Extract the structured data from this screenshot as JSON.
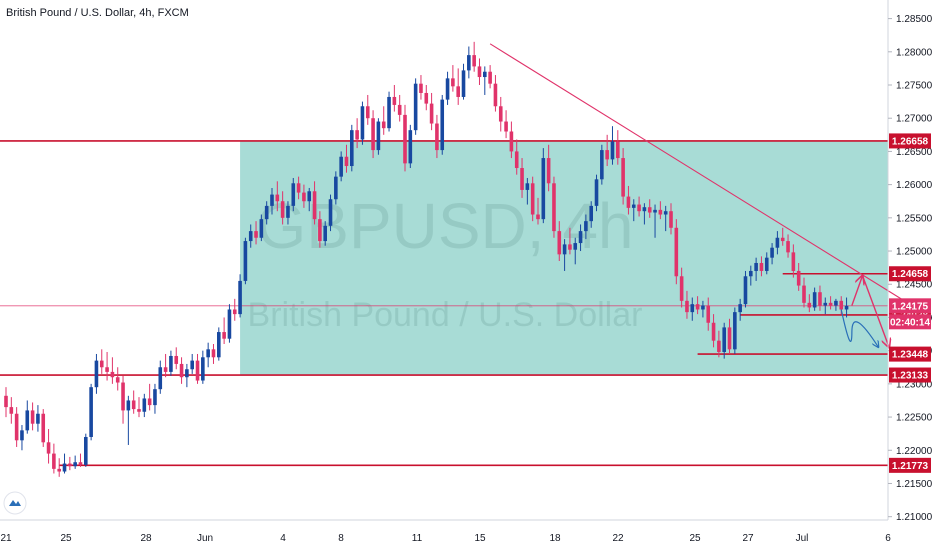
{
  "chart_data": {
    "type": "candlestick",
    "title": "British Pound / U.S. Dollar, 4h, FXCM",
    "watermark_symbol": "GBPUSD, 4h",
    "watermark_name": "British Pound / U.S. Dollar",
    "ylim": [
      1.2095,
      1.2878
    ],
    "y_ticks": [
      "1.28500",
      "1.28000",
      "1.27500",
      "1.27000",
      "1.26500",
      "1.26000",
      "1.25500",
      "1.25000",
      "1.24500",
      "1.24000",
      "1.23500",
      "1.23000",
      "1.22500",
      "1.22000",
      "1.21500",
      "1.21000"
    ],
    "x_ticks": [
      "21",
      "25",
      "28",
      "Jun",
      "4",
      "8",
      "11",
      "15",
      "18",
      "22",
      "25",
      "27",
      "Jul",
      "6"
    ],
    "colors": {
      "up": "#1848a0",
      "down": "#e0336a",
      "zone": "#a8dcd6",
      "level": "#c8102e",
      "trendline": "#e0336a",
      "badge": "#c8102e",
      "projection": "#e0336a",
      "projection_alt": "#2a6fb8"
    },
    "zone": {
      "from": 1.23133,
      "to": 1.26658,
      "start_bar": 44
    },
    "levels": [
      {
        "value": 1.26658,
        "label": "1.26658",
        "start_bar": -8
      },
      {
        "value": 1.24658,
        "label": "1.24658",
        "start_bar": 146
      },
      {
        "value": 1.24038,
        "label": "1.24038",
        "start_bar": 138
      },
      {
        "value": 1.23448,
        "label": "1.23448",
        "start_bar": 130
      },
      {
        "value": 1.23133,
        "label": "1.23133",
        "start_bar": -8
      },
      {
        "value": 1.21773,
        "label": "1.21773",
        "start_bar": 10
      }
    ],
    "price_line": {
      "value": 1.24175,
      "label": "1.24175",
      "countdown": "02:40:14"
    },
    "trendline": {
      "from": {
        "bar": 91,
        "value": 1.2812
      },
      "to": {
        "bar": 191,
        "value": 1.2315
      }
    },
    "projection": [
      {
        "bar": 159,
        "value": 1.2418
      },
      {
        "bar": 161,
        "value": 1.2463
      },
      {
        "bar": 166,
        "value": 1.2355
      }
    ],
    "projection_alt": [
      {
        "bar": 157,
        "value": 1.2412
      },
      {
        "bar": 159,
        "value": 1.2378
      },
      {
        "bar": 164,
        "value": 1.2355
      }
    ],
    "candles": [
      {
        "o": 1.2282,
        "h": 1.2295,
        "l": 1.225,
        "c": 1.2265
      },
      {
        "o": 1.2265,
        "h": 1.228,
        "l": 1.224,
        "c": 1.2255
      },
      {
        "o": 1.2255,
        "h": 1.2265,
        "l": 1.2205,
        "c": 1.2215
      },
      {
        "o": 1.2215,
        "h": 1.2238,
        "l": 1.22,
        "c": 1.223
      },
      {
        "o": 1.223,
        "h": 1.2275,
        "l": 1.2225,
        "c": 1.226
      },
      {
        "o": 1.226,
        "h": 1.2272,
        "l": 1.223,
        "c": 1.224
      },
      {
        "o": 1.224,
        "h": 1.2268,
        "l": 1.2228,
        "c": 1.2255
      },
      {
        "o": 1.2255,
        "h": 1.2262,
        "l": 1.2205,
        "c": 1.2212
      },
      {
        "o": 1.2212,
        "h": 1.2232,
        "l": 1.218,
        "c": 1.2195
      },
      {
        "o": 1.2195,
        "h": 1.221,
        "l": 1.2165,
        "c": 1.2172
      },
      {
        "o": 1.2172,
        "h": 1.2188,
        "l": 1.216,
        "c": 1.2168
      },
      {
        "o": 1.2168,
        "h": 1.2195,
        "l": 1.2165,
        "c": 1.218
      },
      {
        "o": 1.218,
        "h": 1.219,
        "l": 1.217,
        "c": 1.2176
      },
      {
        "o": 1.2176,
        "h": 1.2192,
        "l": 1.2172,
        "c": 1.2182
      },
      {
        "o": 1.2182,
        "h": 1.2195,
        "l": 1.2175,
        "c": 1.2178
      },
      {
        "o": 1.2178,
        "h": 1.2225,
        "l": 1.2175,
        "c": 1.222
      },
      {
        "o": 1.222,
        "h": 1.23,
        "l": 1.2215,
        "c": 1.2295
      },
      {
        "o": 1.2295,
        "h": 1.2345,
        "l": 1.2285,
        "c": 1.2335
      },
      {
        "o": 1.2335,
        "h": 1.2352,
        "l": 1.2315,
        "c": 1.2325
      },
      {
        "o": 1.2325,
        "h": 1.2348,
        "l": 1.2305,
        "c": 1.2318
      },
      {
        "o": 1.2318,
        "h": 1.234,
        "l": 1.23,
        "c": 1.231
      },
      {
        "o": 1.231,
        "h": 1.2325,
        "l": 1.229,
        "c": 1.2302
      },
      {
        "o": 1.2302,
        "h": 1.2312,
        "l": 1.224,
        "c": 1.226
      },
      {
        "o": 1.226,
        "h": 1.2282,
        "l": 1.2208,
        "c": 1.2275
      },
      {
        "o": 1.2275,
        "h": 1.229,
        "l": 1.2255,
        "c": 1.2262
      },
      {
        "o": 1.2262,
        "h": 1.228,
        "l": 1.225,
        "c": 1.2258
      },
      {
        "o": 1.2258,
        "h": 1.2285,
        "l": 1.225,
        "c": 1.2278
      },
      {
        "o": 1.2278,
        "h": 1.23,
        "l": 1.226,
        "c": 1.2268
      },
      {
        "o": 1.2268,
        "h": 1.23,
        "l": 1.2255,
        "c": 1.2292
      },
      {
        "o": 1.2292,
        "h": 1.2335,
        "l": 1.2285,
        "c": 1.2325
      },
      {
        "o": 1.2325,
        "h": 1.2345,
        "l": 1.231,
        "c": 1.2318
      },
      {
        "o": 1.2318,
        "h": 1.235,
        "l": 1.2312,
        "c": 1.2342
      },
      {
        "o": 1.2342,
        "h": 1.2355,
        "l": 1.2322,
        "c": 1.233
      },
      {
        "o": 1.233,
        "h": 1.234,
        "l": 1.23,
        "c": 1.231
      },
      {
        "o": 1.231,
        "h": 1.233,
        "l": 1.2295,
        "c": 1.2322
      },
      {
        "o": 1.2322,
        "h": 1.2345,
        "l": 1.2315,
        "c": 1.2335
      },
      {
        "o": 1.2335,
        "h": 1.2345,
        "l": 1.23,
        "c": 1.2305
      },
      {
        "o": 1.2305,
        "h": 1.235,
        "l": 1.23,
        "c": 1.234
      },
      {
        "o": 1.234,
        "h": 1.2362,
        "l": 1.2325,
        "c": 1.2352
      },
      {
        "o": 1.2352,
        "h": 1.236,
        "l": 1.233,
        "c": 1.234
      },
      {
        "o": 1.234,
        "h": 1.2385,
        "l": 1.2335,
        "c": 1.2378
      },
      {
        "o": 1.2378,
        "h": 1.24,
        "l": 1.236,
        "c": 1.2368
      },
      {
        "o": 1.2368,
        "h": 1.242,
        "l": 1.2362,
        "c": 1.2412
      },
      {
        "o": 1.2412,
        "h": 1.2428,
        "l": 1.2395,
        "c": 1.2405
      },
      {
        "o": 1.2405,
        "h": 1.2465,
        "l": 1.24,
        "c": 1.2455
      },
      {
        "o": 1.2455,
        "h": 1.252,
        "l": 1.245,
        "c": 1.2515
      },
      {
        "o": 1.2515,
        "h": 1.254,
        "l": 1.2505,
        "c": 1.253
      },
      {
        "o": 1.253,
        "h": 1.2545,
        "l": 1.251,
        "c": 1.252
      },
      {
        "o": 1.252,
        "h": 1.2555,
        "l": 1.2515,
        "c": 1.2548
      },
      {
        "o": 1.2548,
        "h": 1.2575,
        "l": 1.254,
        "c": 1.2568
      },
      {
        "o": 1.2568,
        "h": 1.2595,
        "l": 1.2555,
        "c": 1.2585
      },
      {
        "o": 1.2585,
        "h": 1.2605,
        "l": 1.256,
        "c": 1.2575
      },
      {
        "o": 1.2575,
        "h": 1.259,
        "l": 1.254,
        "c": 1.255
      },
      {
        "o": 1.255,
        "h": 1.2575,
        "l": 1.254,
        "c": 1.2568
      },
      {
        "o": 1.2568,
        "h": 1.261,
        "l": 1.256,
        "c": 1.2602
      },
      {
        "o": 1.2602,
        "h": 1.2612,
        "l": 1.2578,
        "c": 1.2588
      },
      {
        "o": 1.2588,
        "h": 1.26,
        "l": 1.2565,
        "c": 1.2575
      },
      {
        "o": 1.2575,
        "h": 1.2595,
        "l": 1.256,
        "c": 1.259
      },
      {
        "o": 1.259,
        "h": 1.2605,
        "l": 1.254,
        "c": 1.2548
      },
      {
        "o": 1.2548,
        "h": 1.256,
        "l": 1.2505,
        "c": 1.2515
      },
      {
        "o": 1.2515,
        "h": 1.2545,
        "l": 1.2508,
        "c": 1.2538
      },
      {
        "o": 1.2538,
        "h": 1.2585,
        "l": 1.253,
        "c": 1.2578
      },
      {
        "o": 1.2578,
        "h": 1.262,
        "l": 1.257,
        "c": 1.2612
      },
      {
        "o": 1.2612,
        "h": 1.265,
        "l": 1.2605,
        "c": 1.2642
      },
      {
        "o": 1.2642,
        "h": 1.266,
        "l": 1.2618,
        "c": 1.2628
      },
      {
        "o": 1.2628,
        "h": 1.269,
        "l": 1.262,
        "c": 1.2682
      },
      {
        "o": 1.2682,
        "h": 1.27,
        "l": 1.2655,
        "c": 1.2668
      },
      {
        "o": 1.2668,
        "h": 1.2725,
        "l": 1.266,
        "c": 1.2718
      },
      {
        "o": 1.2718,
        "h": 1.2735,
        "l": 1.269,
        "c": 1.27
      },
      {
        "o": 1.27,
        "h": 1.2712,
        "l": 1.264,
        "c": 1.2652
      },
      {
        "o": 1.2652,
        "h": 1.27,
        "l": 1.2645,
        "c": 1.2695
      },
      {
        "o": 1.2695,
        "h": 1.2718,
        "l": 1.2675,
        "c": 1.2685
      },
      {
        "o": 1.2685,
        "h": 1.274,
        "l": 1.268,
        "c": 1.2732
      },
      {
        "o": 1.2732,
        "h": 1.275,
        "l": 1.271,
        "c": 1.272
      },
      {
        "o": 1.272,
        "h": 1.2735,
        "l": 1.2695,
        "c": 1.2705
      },
      {
        "o": 1.2705,
        "h": 1.272,
        "l": 1.262,
        "c": 1.2632
      },
      {
        "o": 1.2632,
        "h": 1.269,
        "l": 1.2625,
        "c": 1.2682
      },
      {
        "o": 1.2682,
        "h": 1.276,
        "l": 1.2675,
        "c": 1.2752
      },
      {
        "o": 1.2752,
        "h": 1.2765,
        "l": 1.2728,
        "c": 1.2738
      },
      {
        "o": 1.2738,
        "h": 1.275,
        "l": 1.2712,
        "c": 1.2722
      },
      {
        "o": 1.2722,
        "h": 1.2738,
        "l": 1.2682,
        "c": 1.2692
      },
      {
        "o": 1.2692,
        "h": 1.2705,
        "l": 1.264,
        "c": 1.2652
      },
      {
        "o": 1.2652,
        "h": 1.2735,
        "l": 1.2645,
        "c": 1.2728
      },
      {
        "o": 1.2728,
        "h": 1.277,
        "l": 1.272,
        "c": 1.276
      },
      {
        "o": 1.276,
        "h": 1.278,
        "l": 1.274,
        "c": 1.2748
      },
      {
        "o": 1.2748,
        "h": 1.2775,
        "l": 1.272,
        "c": 1.2732
      },
      {
        "o": 1.2732,
        "h": 1.2782,
        "l": 1.2728,
        "c": 1.2772
      },
      {
        "o": 1.2772,
        "h": 1.2808,
        "l": 1.276,
        "c": 1.2795
      },
      {
        "o": 1.2795,
        "h": 1.2815,
        "l": 1.277,
        "c": 1.2778
      },
      {
        "o": 1.2778,
        "h": 1.279,
        "l": 1.275,
        "c": 1.2762
      },
      {
        "o": 1.2762,
        "h": 1.2778,
        "l": 1.2735,
        "c": 1.277
      },
      {
        "o": 1.277,
        "h": 1.278,
        "l": 1.2745,
        "c": 1.2752
      },
      {
        "o": 1.2752,
        "h": 1.2765,
        "l": 1.271,
        "c": 1.2718
      },
      {
        "o": 1.2718,
        "h": 1.2732,
        "l": 1.268,
        "c": 1.2695
      },
      {
        "o": 1.2695,
        "h": 1.2712,
        "l": 1.267,
        "c": 1.268
      },
      {
        "o": 1.268,
        "h": 1.2695,
        "l": 1.264,
        "c": 1.265
      },
      {
        "o": 1.265,
        "h": 1.2668,
        "l": 1.2615,
        "c": 1.2625
      },
      {
        "o": 1.2625,
        "h": 1.264,
        "l": 1.258,
        "c": 1.2592
      },
      {
        "o": 1.2592,
        "h": 1.261,
        "l": 1.257,
        "c": 1.2602
      },
      {
        "o": 1.2602,
        "h": 1.2612,
        "l": 1.2545,
        "c": 1.2555
      },
      {
        "o": 1.2555,
        "h": 1.258,
        "l": 1.254,
        "c": 1.2548
      },
      {
        "o": 1.2548,
        "h": 1.2655,
        "l": 1.2542,
        "c": 1.264
      },
      {
        "o": 1.264,
        "h": 1.266,
        "l": 1.259,
        "c": 1.2602
      },
      {
        "o": 1.2602,
        "h": 1.2612,
        "l": 1.252,
        "c": 1.253
      },
      {
        "o": 1.253,
        "h": 1.2545,
        "l": 1.2485,
        "c": 1.2495
      },
      {
        "o": 1.2495,
        "h": 1.2518,
        "l": 1.247,
        "c": 1.251
      },
      {
        "o": 1.251,
        "h": 1.2535,
        "l": 1.2495,
        "c": 1.2502
      },
      {
        "o": 1.2502,
        "h": 1.252,
        "l": 1.248,
        "c": 1.2512
      },
      {
        "o": 1.2512,
        "h": 1.254,
        "l": 1.25,
        "c": 1.253
      },
      {
        "o": 1.253,
        "h": 1.2555,
        "l": 1.2518,
        "c": 1.2545
      },
      {
        "o": 1.2545,
        "h": 1.2575,
        "l": 1.2535,
        "c": 1.2568
      },
      {
        "o": 1.2568,
        "h": 1.2615,
        "l": 1.256,
        "c": 1.2608
      },
      {
        "o": 1.2608,
        "h": 1.266,
        "l": 1.26,
        "c": 1.2652
      },
      {
        "o": 1.2652,
        "h": 1.2675,
        "l": 1.2628,
        "c": 1.2638
      },
      {
        "o": 1.2638,
        "h": 1.2688,
        "l": 1.263,
        "c": 1.2665
      },
      {
        "o": 1.2665,
        "h": 1.2682,
        "l": 1.263,
        "c": 1.264
      },
      {
        "o": 1.264,
        "h": 1.2655,
        "l": 1.257,
        "c": 1.2582
      },
      {
        "o": 1.2582,
        "h": 1.2598,
        "l": 1.2555,
        "c": 1.2565
      },
      {
        "o": 1.2565,
        "h": 1.2578,
        "l": 1.2545,
        "c": 1.257
      },
      {
        "o": 1.257,
        "h": 1.2582,
        "l": 1.2552,
        "c": 1.256
      },
      {
        "o": 1.256,
        "h": 1.2572,
        "l": 1.254,
        "c": 1.2566
      },
      {
        "o": 1.2566,
        "h": 1.2578,
        "l": 1.255,
        "c": 1.2558
      },
      {
        "o": 1.2558,
        "h": 1.257,
        "l": 1.252,
        "c": 1.2562
      },
      {
        "o": 1.2562,
        "h": 1.2575,
        "l": 1.2548,
        "c": 1.2555
      },
      {
        "o": 1.2555,
        "h": 1.2568,
        "l": 1.253,
        "c": 1.256
      },
      {
        "o": 1.256,
        "h": 1.2572,
        "l": 1.2525,
        "c": 1.2535
      },
      {
        "o": 1.2535,
        "h": 1.2548,
        "l": 1.245,
        "c": 1.2462
      },
      {
        "o": 1.2462,
        "h": 1.2475,
        "l": 1.2415,
        "c": 1.2425
      },
      {
        "o": 1.2425,
        "h": 1.244,
        "l": 1.2398,
        "c": 1.2408
      },
      {
        "o": 1.2408,
        "h": 1.243,
        "l": 1.2395,
        "c": 1.242
      },
      {
        "o": 1.242,
        "h": 1.2432,
        "l": 1.2405,
        "c": 1.2412
      },
      {
        "o": 1.2412,
        "h": 1.2425,
        "l": 1.24,
        "c": 1.2418
      },
      {
        "o": 1.2418,
        "h": 1.243,
        "l": 1.238,
        "c": 1.2392
      },
      {
        "o": 1.2392,
        "h": 1.2405,
        "l": 1.2355,
        "c": 1.2365
      },
      {
        "o": 1.2365,
        "h": 1.238,
        "l": 1.234,
        "c": 1.2348
      },
      {
        "o": 1.2348,
        "h": 1.2392,
        "l": 1.2338,
        "c": 1.2385
      },
      {
        "o": 1.2385,
        "h": 1.2398,
        "l": 1.2345,
        "c": 1.2352
      },
      {
        "o": 1.2352,
        "h": 1.2415,
        "l": 1.2345,
        "c": 1.2408
      },
      {
        "o": 1.2408,
        "h": 1.2428,
        "l": 1.2395,
        "c": 1.242
      },
      {
        "o": 1.242,
        "h": 1.247,
        "l": 1.2415,
        "c": 1.2462
      },
      {
        "o": 1.2462,
        "h": 1.2478,
        "l": 1.2448,
        "c": 1.247
      },
      {
        "o": 1.247,
        "h": 1.249,
        "l": 1.2455,
        "c": 1.2482
      },
      {
        "o": 1.2482,
        "h": 1.2492,
        "l": 1.2462,
        "c": 1.247
      },
      {
        "o": 1.247,
        "h": 1.2498,
        "l": 1.2465,
        "c": 1.249
      },
      {
        "o": 1.249,
        "h": 1.2512,
        "l": 1.248,
        "c": 1.2505
      },
      {
        "o": 1.2505,
        "h": 1.253,
        "l": 1.2495,
        "c": 1.252
      },
      {
        "o": 1.252,
        "h": 1.2535,
        "l": 1.2508,
        "c": 1.2515
      },
      {
        "o": 1.2515,
        "h": 1.2525,
        "l": 1.249,
        "c": 1.2498
      },
      {
        "o": 1.2498,
        "h": 1.251,
        "l": 1.246,
        "c": 1.247
      },
      {
        "o": 1.247,
        "h": 1.2482,
        "l": 1.244,
        "c": 1.2448
      },
      {
        "o": 1.2448,
        "h": 1.246,
        "l": 1.2415,
        "c": 1.2422
      },
      {
        "o": 1.2422,
        "h": 1.2435,
        "l": 1.2408,
        "c": 1.2415
      },
      {
        "o": 1.2415,
        "h": 1.2445,
        "l": 1.241,
        "c": 1.2438
      },
      {
        "o": 1.2438,
        "h": 1.2448,
        "l": 1.241,
        "c": 1.2418
      },
      {
        "o": 1.2418,
        "h": 1.243,
        "l": 1.2405,
        "c": 1.2422
      },
      {
        "o": 1.2422,
        "h": 1.2432,
        "l": 1.2412,
        "c": 1.2418
      },
      {
        "o": 1.2418,
        "h": 1.2428,
        "l": 1.241,
        "c": 1.2425
      },
      {
        "o": 1.2425,
        "h": 1.2432,
        "l": 1.2405,
        "c": 1.2412
      },
      {
        "o": 1.2412,
        "h": 1.243,
        "l": 1.24,
        "c": 1.24175
      }
    ]
  }
}
